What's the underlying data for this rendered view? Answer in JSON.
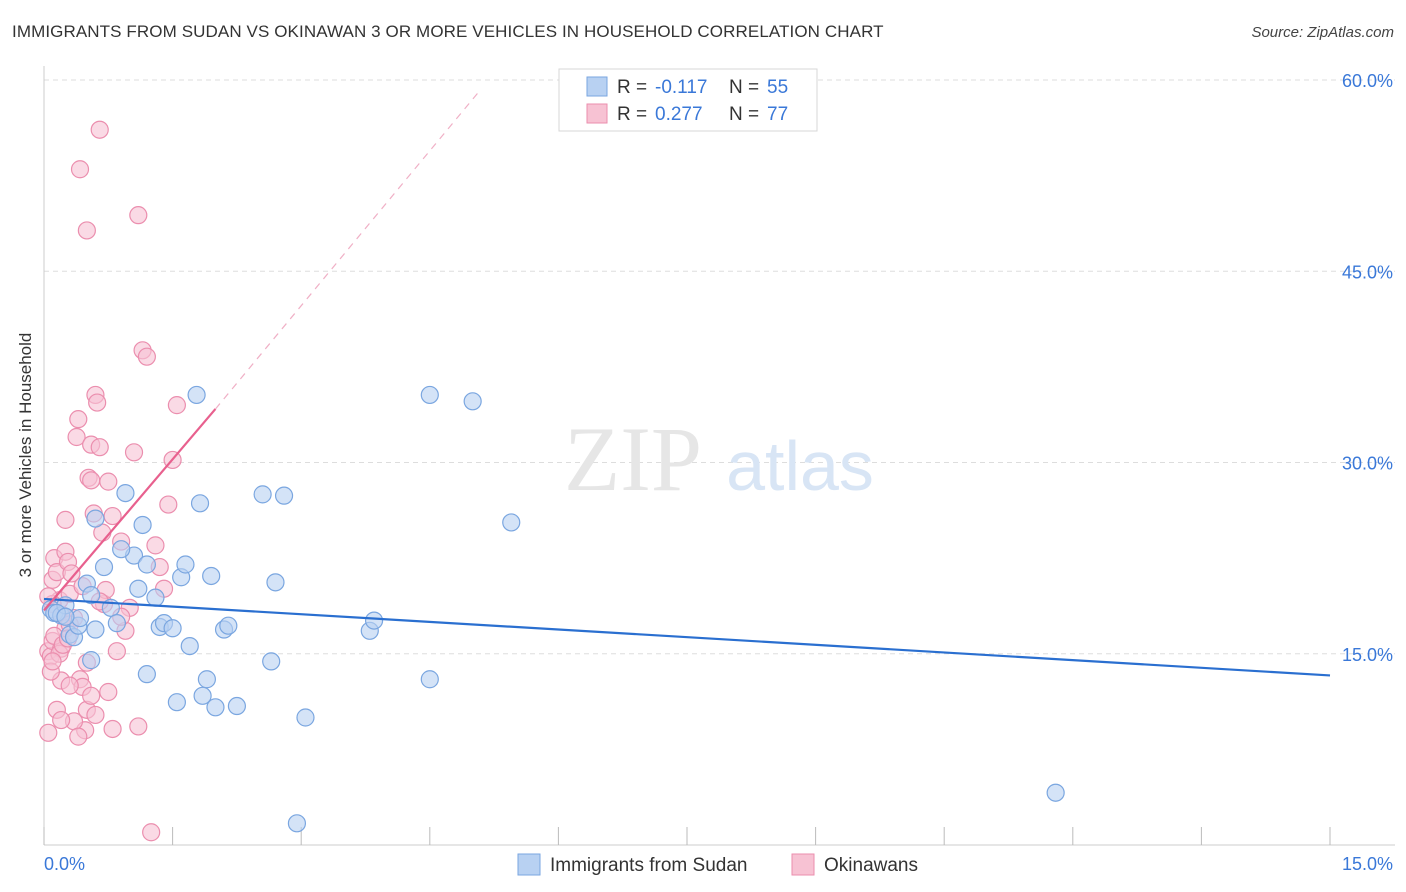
{
  "title": "IMMIGRANTS FROM SUDAN VS OKINAWAN 3 OR MORE VEHICLES IN HOUSEHOLD CORRELATION CHART",
  "source": "Source: ZipAtlas.com",
  "watermark": {
    "zip": "ZIP",
    "atlas": "atlas"
  },
  "colors": {
    "blue_fill": "#b8d1f2",
    "blue_stroke": "#7aa6e0",
    "blue_line": "#2a6fd0",
    "pink_fill": "#f7c2d3",
    "pink_stroke": "#eb8eae",
    "pink_line": "#e8608e",
    "tick_label": "#3a78d8",
    "grid": "#dddddd"
  },
  "legend_top": [
    {
      "r_label": "R =",
      "r_value": "-0.117",
      "n_label": "N =",
      "n_value": "55",
      "color": "blue"
    },
    {
      "r_label": "R =",
      "r_value": "0.277",
      "n_label": "N =",
      "n_value": "77",
      "color": "pink"
    }
  ],
  "chart_data": {
    "type": "scatter",
    "title": "IMMIGRANTS FROM SUDAN VS OKINAWAN 3 OR MORE VEHICLES IN HOUSEHOLD CORRELATION CHART",
    "xlabel": "",
    "ylabel": "3 or more Vehicles in Household",
    "xlim": [
      0,
      15
    ],
    "ylim": [
      0,
      60
    ],
    "x_tick_labels": [
      {
        "value": 0,
        "label": "0.0%"
      },
      {
        "value": 15,
        "label": "15.0%"
      }
    ],
    "y_tick_labels": [
      {
        "value": 15,
        "label": "15.0%"
      },
      {
        "value": 30,
        "label": "30.0%"
      },
      {
        "value": 45,
        "label": "45.0%"
      },
      {
        "value": 60,
        "label": "60.0%"
      }
    ],
    "x_minor_ticks": [
      0,
      1.5,
      3,
      4.5,
      6,
      7.5,
      9,
      10.5,
      12,
      13.5,
      15
    ],
    "legend": [
      "Immigrants from Sudan",
      "Okinawans"
    ],
    "series": [
      {
        "name": "Immigrants from Sudan",
        "color": "blue",
        "trend": {
          "x": [
            0,
            15
          ],
          "y": [
            19.3,
            13.3
          ],
          "dashed_extension": false
        },
        "points": [
          [
            0.08,
            18.5
          ],
          [
            0.12,
            18.2
          ],
          [
            0.2,
            18.0
          ],
          [
            0.25,
            18.8
          ],
          [
            0.3,
            16.5
          ],
          [
            0.35,
            16.3
          ],
          [
            0.4,
            17.2
          ],
          [
            0.42,
            17.8
          ],
          [
            0.5,
            20.5
          ],
          [
            0.55,
            19.6
          ],
          [
            0.6,
            16.9
          ],
          [
            0.7,
            21.8
          ],
          [
            0.78,
            18.6
          ],
          [
            0.85,
            17.4
          ],
          [
            0.95,
            27.6
          ],
          [
            1.05,
            22.7
          ],
          [
            1.1,
            20.1
          ],
          [
            1.15,
            25.1
          ],
          [
            1.2,
            22.0
          ],
          [
            1.3,
            19.4
          ],
          [
            1.35,
            17.1
          ],
          [
            1.4,
            17.4
          ],
          [
            1.5,
            17.0
          ],
          [
            1.6,
            21.0
          ],
          [
            1.65,
            22.0
          ],
          [
            1.7,
            15.6
          ],
          [
            1.78,
            35.3
          ],
          [
            1.82,
            26.8
          ],
          [
            1.95,
            21.1
          ],
          [
            2.0,
            10.8
          ],
          [
            2.1,
            16.9
          ],
          [
            2.15,
            17.2
          ],
          [
            0.6,
            25.6
          ],
          [
            0.9,
            23.2
          ],
          [
            1.2,
            13.4
          ],
          [
            1.55,
            11.2
          ],
          [
            1.85,
            11.7
          ],
          [
            1.9,
            13.0
          ],
          [
            2.25,
            10.9
          ],
          [
            2.65,
            14.4
          ],
          [
            2.7,
            20.6
          ],
          [
            2.8,
            27.4
          ],
          [
            3.05,
            10.0
          ],
          [
            3.8,
            16.8
          ],
          [
            3.85,
            17.6
          ],
          [
            4.5,
            35.3
          ],
          [
            5.0,
            34.8
          ],
          [
            5.45,
            25.3
          ],
          [
            4.5,
            13.0
          ],
          [
            11.8,
            4.1
          ],
          [
            2.95,
            1.7
          ],
          [
            0.55,
            14.5
          ],
          [
            0.15,
            18.2
          ],
          [
            0.25,
            17.9
          ],
          [
            2.55,
            27.5
          ]
        ]
      },
      {
        "name": "Okinawans",
        "color": "pink",
        "trend": {
          "x": [
            0,
            2.0
          ],
          "y": [
            18.4,
            34.2
          ],
          "dashed_extension": true,
          "dash_to": {
            "x": 5.1,
            "y": 59.3
          }
        },
        "points": [
          [
            0.05,
            8.8
          ],
          [
            0.05,
            15.2
          ],
          [
            0.08,
            14.8
          ],
          [
            0.1,
            16.0
          ],
          [
            0.1,
            20.8
          ],
          [
            0.12,
            22.5
          ],
          [
            0.15,
            21.4
          ],
          [
            0.18,
            19.2
          ],
          [
            0.2,
            15.4
          ],
          [
            0.22,
            18.0
          ],
          [
            0.25,
            23.0
          ],
          [
            0.25,
            25.5
          ],
          [
            0.28,
            22.2
          ],
          [
            0.3,
            19.7
          ],
          [
            0.32,
            21.3
          ],
          [
            0.35,
            17.8
          ],
          [
            0.38,
            32.0
          ],
          [
            0.4,
            33.4
          ],
          [
            0.42,
            13.0
          ],
          [
            0.45,
            12.4
          ],
          [
            0.48,
            9.0
          ],
          [
            0.5,
            10.6
          ],
          [
            0.5,
            14.3
          ],
          [
            0.52,
            28.8
          ],
          [
            0.55,
            31.4
          ],
          [
            0.58,
            26.0
          ],
          [
            0.6,
            35.3
          ],
          [
            0.62,
            34.7
          ],
          [
            0.65,
            31.2
          ],
          [
            0.68,
            24.5
          ],
          [
            0.7,
            18.9
          ],
          [
            0.72,
            20.0
          ],
          [
            0.75,
            28.5
          ],
          [
            0.8,
            25.8
          ],
          [
            0.85,
            15.2
          ],
          [
            0.9,
            23.8
          ],
          [
            0.95,
            16.8
          ],
          [
            1.0,
            18.6
          ],
          [
            1.05,
            30.8
          ],
          [
            1.1,
            9.3
          ],
          [
            1.15,
            38.8
          ],
          [
            1.2,
            38.3
          ],
          [
            1.3,
            23.5
          ],
          [
            1.35,
            21.8
          ],
          [
            1.4,
            20.1
          ],
          [
            1.45,
            26.7
          ],
          [
            1.5,
            30.2
          ],
          [
            1.55,
            34.5
          ],
          [
            0.65,
            56.1
          ],
          [
            0.42,
            53.0
          ],
          [
            0.5,
            48.2
          ],
          [
            1.1,
            49.4
          ],
          [
            0.15,
            10.6
          ],
          [
            0.2,
            12.9
          ],
          [
            0.3,
            12.5
          ],
          [
            0.35,
            9.7
          ],
          [
            0.4,
            8.5
          ],
          [
            0.55,
            11.7
          ],
          [
            0.6,
            10.2
          ],
          [
            0.25,
            17.0
          ],
          [
            0.3,
            17.3
          ],
          [
            0.1,
            18.9
          ],
          [
            0.05,
            19.5
          ],
          [
            0.12,
            16.4
          ],
          [
            0.18,
            15.0
          ],
          [
            0.08,
            13.6
          ],
          [
            0.22,
            15.7
          ],
          [
            0.28,
            16.2
          ],
          [
            0.45,
            20.3
          ],
          [
            0.65,
            19.1
          ],
          [
            0.55,
            28.6
          ],
          [
            0.9,
            17.9
          ],
          [
            1.25,
            1.0
          ],
          [
            0.1,
            14.4
          ],
          [
            0.2,
            9.8
          ],
          [
            0.75,
            12.0
          ],
          [
            0.8,
            9.1
          ]
        ]
      }
    ]
  }
}
